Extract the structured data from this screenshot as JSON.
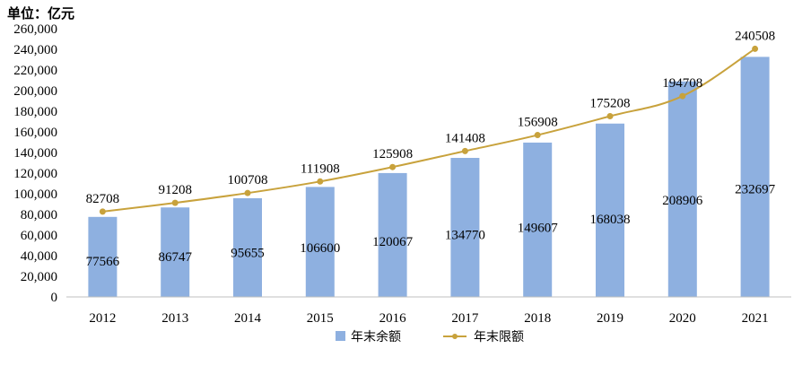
{
  "unit_label": "单位：亿元",
  "colors": {
    "bar": "#8eb0e0",
    "line": "#c8a23c",
    "axis": "#bfbfbf"
  },
  "chart_data": {
    "type": "bar",
    "categories": [
      "2012",
      "2013",
      "2014",
      "2015",
      "2016",
      "2017",
      "2018",
      "2019",
      "2020",
      "2021"
    ],
    "series": [
      {
        "name": "年末余额",
        "type": "bar",
        "values": [
          77566,
          86747,
          95655,
          106600,
          120067,
          134770,
          149607,
          168038,
          208906,
          232697
        ]
      },
      {
        "name": "年末限额",
        "type": "line",
        "values": [
          82708,
          91208,
          100708,
          111908,
          125908,
          141408,
          156908,
          175208,
          194708,
          240508
        ]
      }
    ],
    "yticks": [
      "0",
      "20,000",
      "40,000",
      "60,000",
      "80,000",
      "100,000",
      "120,000",
      "140,000",
      "160,000",
      "180,000",
      "200,000",
      "220,000",
      "240,000",
      "260,000"
    ],
    "ylim": [
      0,
      260000
    ],
    "grid": false,
    "legend": "bottom"
  }
}
